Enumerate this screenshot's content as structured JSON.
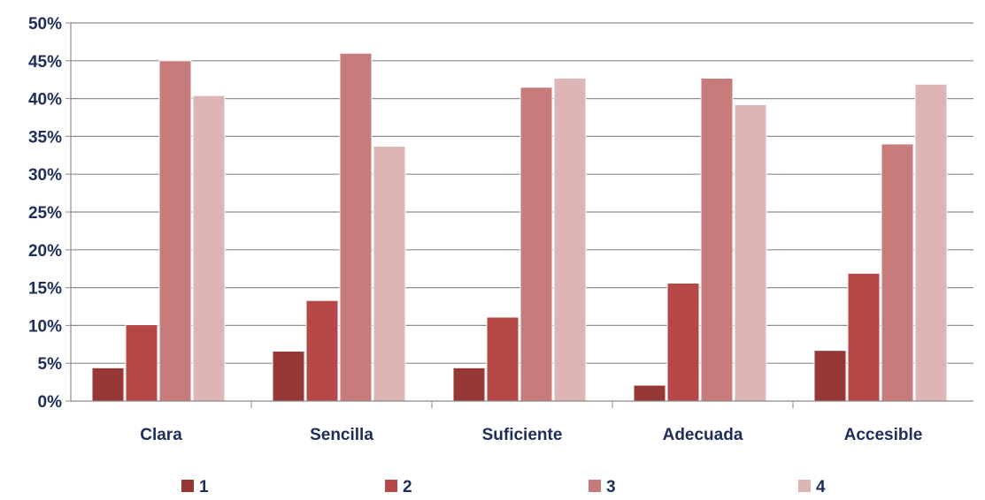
{
  "chart_data": {
    "type": "bar",
    "title": "",
    "xlabel": "",
    "ylabel": "",
    "categories": [
      "Clara",
      "Sencilla",
      "Suficiente",
      "Adecuada",
      "Accesible"
    ],
    "series": [
      {
        "name": "1",
        "color": "#953735",
        "values": [
          4.4,
          6.6,
          4.4,
          2.1,
          6.7
        ]
      },
      {
        "name": "2",
        "color": "#b64747",
        "values": [
          10.1,
          13.3,
          11.1,
          15.6,
          16.9
        ]
      },
      {
        "name": "3",
        "color": "#c87b7b",
        "values": [
          45.0,
          46.0,
          41.5,
          42.7,
          34.0
        ]
      },
      {
        "name": "4",
        "color": "#deb5b5",
        "values": [
          40.4,
          33.7,
          42.7,
          39.2,
          41.9
        ]
      }
    ],
    "ylim": [
      0,
      50
    ],
    "yticks": [
      "0%",
      "5%",
      "10%",
      "15%",
      "20%",
      "25%",
      "30%",
      "35%",
      "40%",
      "45%",
      "50%"
    ],
    "grid": true,
    "legend_position": "bottom"
  }
}
